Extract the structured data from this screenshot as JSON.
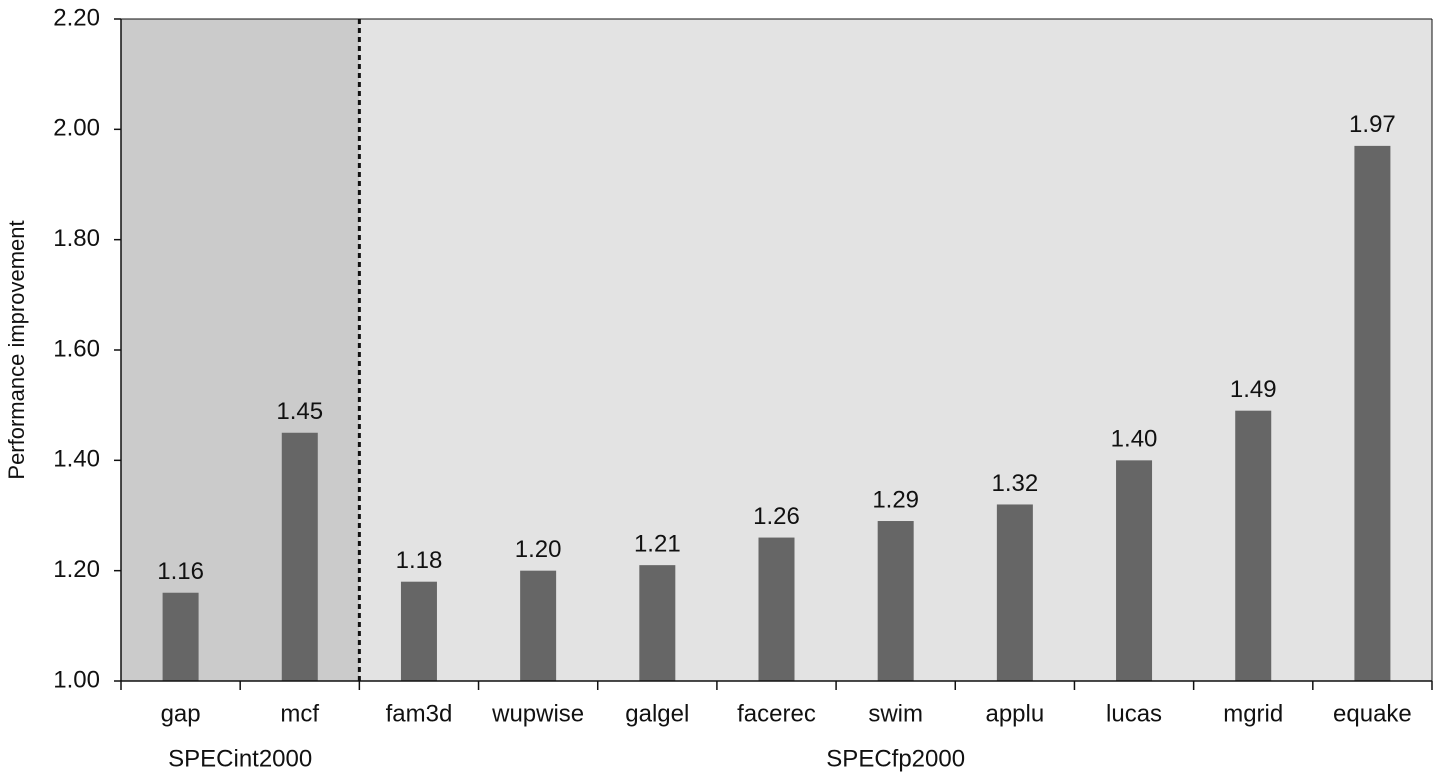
{
  "chart_data": {
    "type": "bar",
    "y_label": "Performance improvement",
    "categories": [
      "gap",
      "mcf",
      "fam3d",
      "wupwise",
      "galgel",
      "facerec",
      "swim",
      "applu",
      "lucas",
      "mgrid",
      "equake"
    ],
    "values": [
      1.16,
      1.45,
      1.18,
      1.2,
      1.21,
      1.26,
      1.29,
      1.32,
      1.4,
      1.49,
      1.97
    ],
    "value_labels": [
      "1.16",
      "1.45",
      "1.18",
      "1.20",
      "1.21",
      "1.26",
      "1.29",
      "1.32",
      "1.40",
      "1.49",
      "1.97"
    ],
    "color": "#666666",
    "groups": [
      {
        "label": "SPECint2000",
        "count": 2,
        "color": "#cbcbcb"
      },
      {
        "label": "SPECfp2000",
        "count": 9,
        "color": "#e3e3e3"
      }
    ],
    "ylim": [
      1,
      2.2
    ],
    "yticks": [
      {
        "value": 1,
        "label": "1.00"
      },
      {
        "value": 1.2,
        "label": "1.20"
      },
      {
        "value": 1.4,
        "label": "1.40"
      },
      {
        "value": 1.6,
        "label": "1.60"
      },
      {
        "value": 1.8,
        "label": "1.80"
      },
      {
        "value": 2,
        "label": "2.00"
      },
      {
        "value": 2.2,
        "label": "2.20"
      }
    ]
  }
}
